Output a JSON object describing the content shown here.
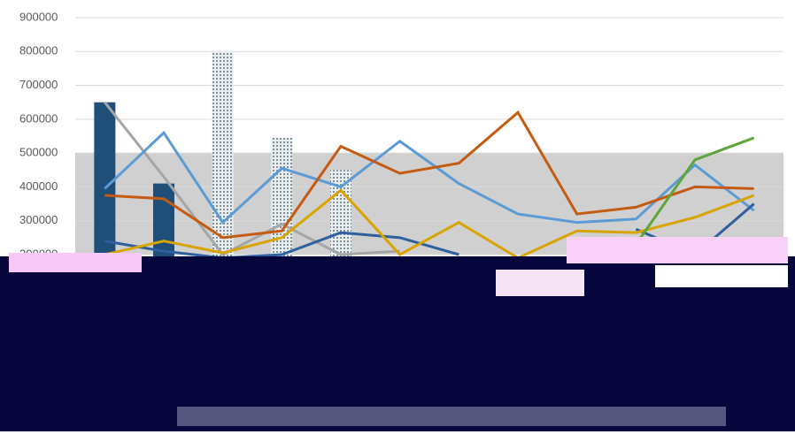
{
  "chart_data": {
    "type": "line",
    "categories": [
      null,
      null,
      null,
      null,
      null,
      null,
      null,
      null,
      null,
      null,
      null,
      null
    ],
    "ylim": [
      200000,
      900000
    ],
    "yticks": [
      200000,
      300000,
      400000,
      500000,
      600000,
      700000,
      800000,
      900000
    ],
    "grid": true,
    "series": [
      {
        "type": "bar",
        "color": "#1f4e79",
        "values": [
          650000,
          410000,
          null,
          null,
          null,
          null,
          null,
          null,
          null,
          null,
          null,
          null
        ]
      },
      {
        "type": "bar",
        "color": "#b8c4c8",
        "pattern": "dots",
        "values": [
          null,
          null,
          800000,
          545000,
          450000,
          null,
          null,
          null,
          null,
          null,
          null,
          null
        ]
      },
      {
        "color": "#a5a5a5",
        "values": [
          650000,
          430000,
          200000,
          290000,
          200000,
          210000,
          null,
          null,
          null,
          null,
          null,
          null
        ]
      },
      {
        "color": "#5b9bd5",
        "values": [
          395000,
          560000,
          295000,
          455000,
          400000,
          535000,
          410000,
          320000,
          295000,
          305000,
          465000,
          330000
        ]
      },
      {
        "color": "#c55a11",
        "values": [
          375000,
          365000,
          250000,
          270000,
          520000,
          440000,
          470000,
          620000,
          320000,
          340000,
          400000,
          395000
        ]
      },
      {
        "color": "#2e5f9e",
        "values": [
          240000,
          210000,
          190000,
          200000,
          265000,
          250000,
          200000,
          null,
          null,
          275000,
          200000,
          350000
        ]
      },
      {
        "color": "#d9a400",
        "values": [
          200000,
          240000,
          205000,
          250000,
          390000,
          200000,
          295000,
          190000,
          270000,
          265000,
          310000,
          375000
        ]
      },
      {
        "color": "#5ea63a",
        "values": [
          null,
          null,
          null,
          null,
          null,
          null,
          null,
          null,
          null,
          230000,
          480000,
          545000
        ]
      }
    ]
  }
}
